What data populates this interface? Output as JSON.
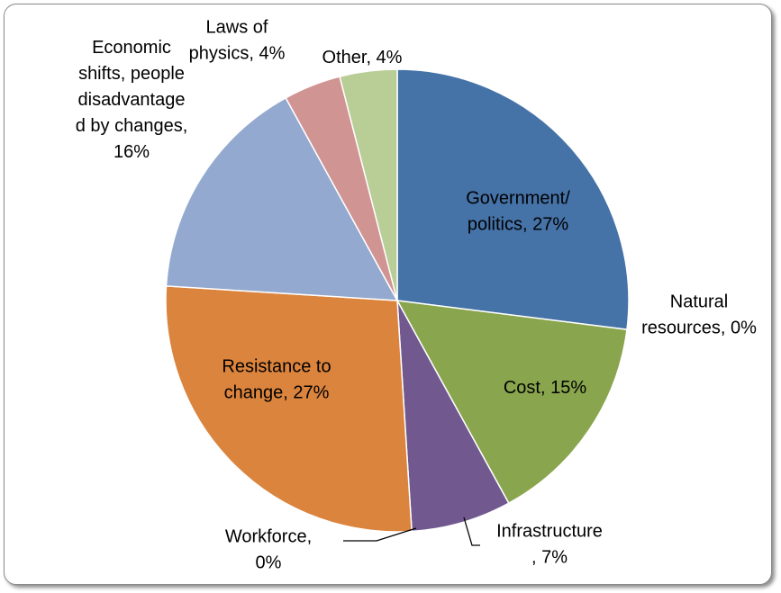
{
  "chart_data": {
    "type": "pie",
    "slices": [
      {
        "label_lines": [
          "Government/",
          "politics, 27%"
        ],
        "value": 27,
        "color": "#4572a7"
      },
      {
        "label_lines": [
          "Natural",
          "resources, 0%"
        ],
        "value": 0,
        "color": "#aa4643"
      },
      {
        "label_lines": [
          "Cost, 15%"
        ],
        "value": 15,
        "color": "#89a54e"
      },
      {
        "label_lines": [
          "Infrastructure",
          ", 7%"
        ],
        "value": 7,
        "color": "#71588f"
      },
      {
        "label_lines": [
          "Workforce,",
          "0%"
        ],
        "value": 0,
        "color": "#4198af"
      },
      {
        "label_lines": [
          "Resistance to",
          "change, 27%"
        ],
        "value": 27,
        "color": "#db843d"
      },
      {
        "label_lines": [
          "Economic",
          "shifts, people",
          "disadvantage",
          "d by changes,",
          "16%"
        ],
        "value": 16,
        "color": "#93a9cf"
      },
      {
        "label_lines": [
          "Laws of",
          "physics, 4%"
        ],
        "value": 4,
        "color": "#d09493"
      },
      {
        "label_lines": [
          "Other, 4%"
        ],
        "value": 4,
        "color": "#b9cd96"
      }
    ],
    "legend": "none"
  }
}
